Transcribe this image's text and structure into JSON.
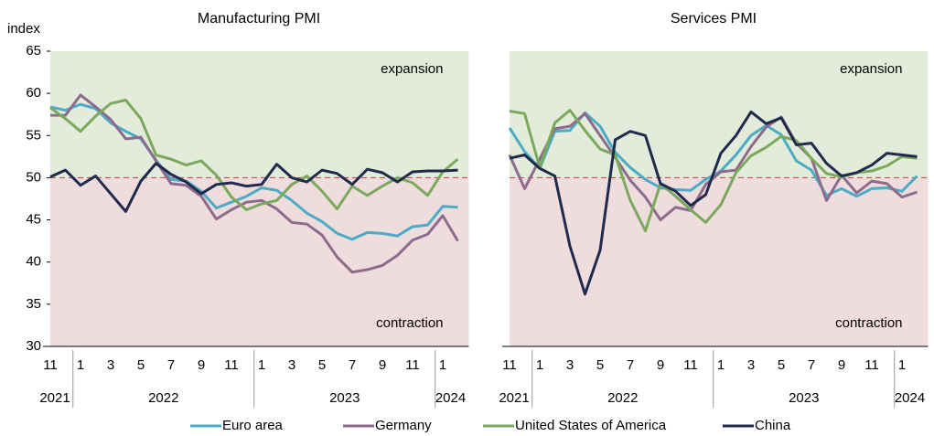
{
  "chart_data": [
    {
      "type": "line",
      "title": "Manufacturing PMI",
      "ylabel": "index",
      "categories": [
        "11",
        null,
        "1",
        null,
        "3",
        null,
        "5",
        null,
        "7",
        null,
        "9",
        null,
        "11",
        null,
        "1",
        null,
        "3",
        null,
        "5",
        null,
        "7",
        null,
        "9",
        null,
        "11",
        null,
        "1",
        null
      ],
      "years": [
        "2021",
        "2022",
        "2023",
        "2024"
      ],
      "ylim": [
        30,
        65
      ],
      "yticks": [
        30,
        35,
        40,
        45,
        50,
        55,
        60,
        65
      ],
      "reference_line": 50,
      "upper_label": "expansion",
      "lower_label": "contraction",
      "series": [
        {
          "name": "Euro area",
          "color": "#4bacc6",
          "values": [
            58.4,
            58.0,
            58.7,
            58.2,
            56.5,
            55.5,
            54.6,
            52.1,
            49.8,
            49.6,
            48.4,
            46.4,
            47.1,
            47.8,
            48.8,
            48.5,
            47.3,
            45.8,
            44.8,
            43.4,
            42.7,
            43.5,
            43.4,
            43.1,
            44.2,
            44.4,
            46.6,
            46.5
          ]
        },
        {
          "name": "Germany",
          "color": "#8e6b8c",
          "values": [
            57.4,
            57.4,
            59.8,
            58.4,
            56.9,
            54.6,
            54.8,
            52.0,
            49.3,
            49.1,
            47.8,
            45.1,
            46.2,
            47.1,
            47.3,
            46.3,
            44.7,
            44.5,
            43.2,
            40.6,
            38.8,
            39.1,
            39.6,
            40.8,
            42.6,
            43.3,
            45.5,
            42.5
          ]
        },
        {
          "name": "United States of America",
          "color": "#7aa95c",
          "values": [
            58.3,
            57.0,
            55.5,
            57.3,
            58.8,
            59.2,
            57.0,
            52.7,
            52.2,
            51.5,
            52.0,
            50.3,
            47.7,
            46.2,
            46.9,
            47.3,
            49.2,
            50.2,
            48.4,
            46.3,
            49.0,
            47.9,
            49.0,
            50.0,
            49.4,
            47.9,
            50.7,
            52.2
          ]
        },
        {
          "name": "China",
          "color": "#1f2a4d",
          "values": [
            50.1,
            50.9,
            49.1,
            50.2,
            48.1,
            46.0,
            49.6,
            51.7,
            50.4,
            49.5,
            48.1,
            49.2,
            49.4,
            49.0,
            49.2,
            51.6,
            50.0,
            49.5,
            50.9,
            50.5,
            49.2,
            51.0,
            50.6,
            49.5,
            50.7,
            50.8,
            50.8,
            50.9
          ]
        }
      ]
    },
    {
      "type": "line",
      "title": "Services PMI",
      "categories": [
        "11",
        null,
        "1",
        null,
        "3",
        null,
        "5",
        null,
        "7",
        null,
        "9",
        null,
        "11",
        null,
        "1",
        null,
        "3",
        null,
        "5",
        null,
        "7",
        null,
        "9",
        null,
        "11",
        null,
        "1",
        null
      ],
      "years": [
        "2021",
        "2022",
        "2023",
        "2024"
      ],
      "ylim": [
        30,
        65
      ],
      "reference_line": 50,
      "upper_label": "expansion",
      "lower_label": "contraction",
      "series": [
        {
          "color": "#4bacc6",
          "values": [
            55.9,
            53.1,
            51.1,
            55.5,
            55.6,
            57.7,
            56.1,
            53.0,
            51.2,
            49.8,
            48.8,
            48.6,
            48.5,
            49.8,
            50.8,
            52.7,
            55.0,
            56.2,
            55.1,
            52.0,
            50.9,
            47.9,
            48.7,
            47.8,
            48.7,
            48.8,
            48.4,
            50.2
          ]
        },
        {
          "color": "#8e6b8c",
          "values": [
            52.7,
            48.7,
            52.2,
            55.8,
            56.1,
            57.6,
            55.0,
            52.4,
            49.7,
            47.7,
            45.0,
            46.5,
            46.1,
            49.2,
            50.7,
            50.9,
            53.7,
            56.0,
            57.2,
            54.1,
            52.3,
            47.3,
            50.3,
            48.2,
            49.6,
            49.3,
            47.7,
            48.3
          ]
        },
        {
          "color": "#7aa95c",
          "values": [
            57.9,
            57.6,
            51.2,
            56.5,
            58.0,
            55.6,
            53.4,
            52.7,
            47.3,
            43.7,
            49.3,
            47.8,
            46.2,
            44.7,
            46.8,
            50.6,
            52.6,
            53.6,
            54.9,
            54.4,
            52.3,
            50.5,
            50.1,
            50.6,
            50.8,
            51.4,
            52.5,
            52.3
          ]
        },
        {
          "color": "#1f2a4d",
          "values": [
            52.3,
            52.7,
            51.1,
            50.2,
            41.9,
            36.2,
            41.4,
            54.5,
            55.5,
            55.0,
            49.3,
            48.4,
            46.7,
            48.0,
            52.9,
            55.0,
            57.8,
            56.4,
            57.1,
            53.9,
            54.1,
            51.7,
            50.2,
            50.6,
            51.5,
            52.9,
            52.7,
            52.5
          ]
        }
      ]
    }
  ]
}
